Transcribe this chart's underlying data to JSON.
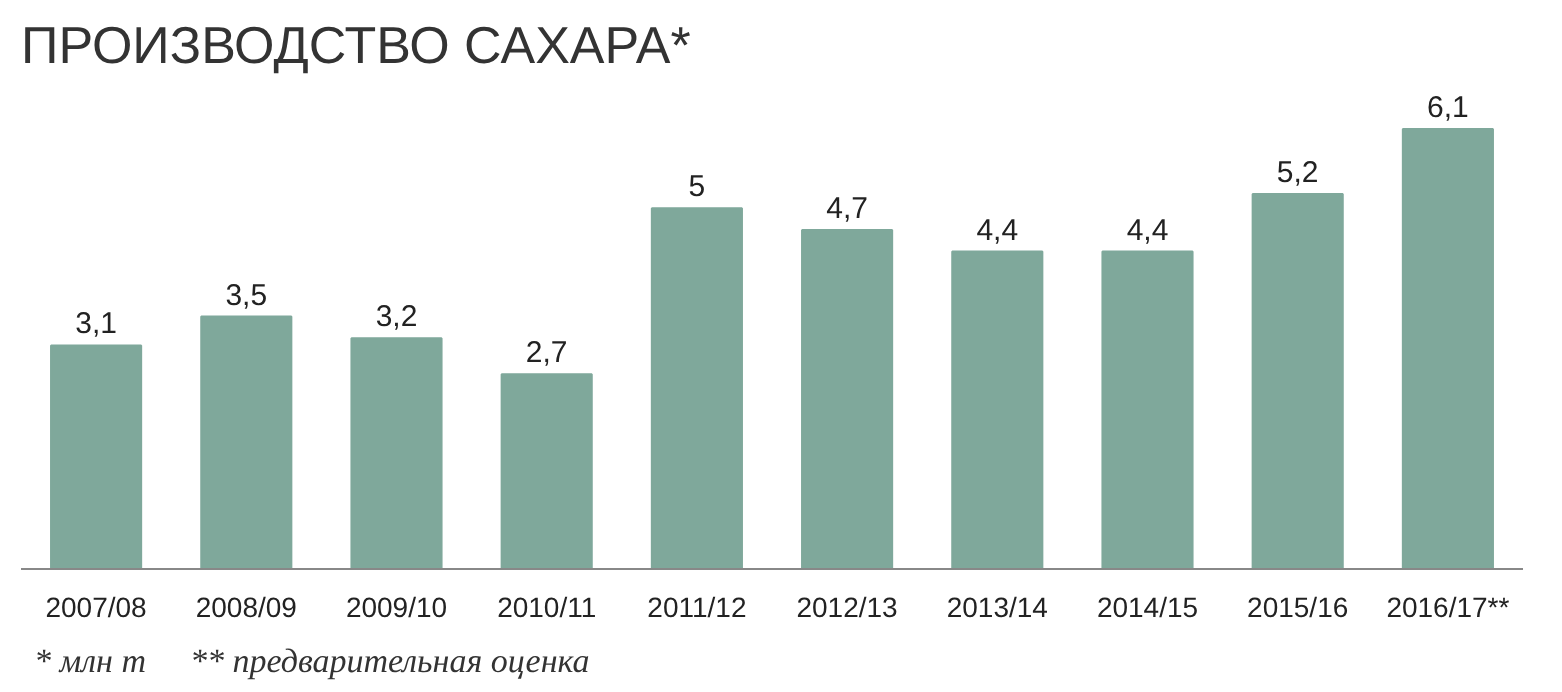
{
  "chart_data": {
    "type": "bar",
    "title": "ПРОИЗВОДСТВО САХАРА*",
    "categories": [
      "2007/08",
      "2008/09",
      "2009/10",
      "2010/11",
      "2011/12",
      "2012/13",
      "2013/14",
      "2014/15",
      "2015/16",
      "2016/17**"
    ],
    "values": [
      3.1,
      3.5,
      3.2,
      2.7,
      5,
      4.7,
      4.4,
      4.4,
      5.2,
      6.1
    ],
    "value_labels": [
      "3,1",
      "3,5",
      "3,2",
      "2,7",
      "5",
      "4,7",
      "4,4",
      "4,4",
      "5,2",
      "6,1"
    ],
    "color": "#7fa89b",
    "grid": false,
    "annotations": [
      "* млн т",
      "** предварительная оценка"
    ]
  }
}
